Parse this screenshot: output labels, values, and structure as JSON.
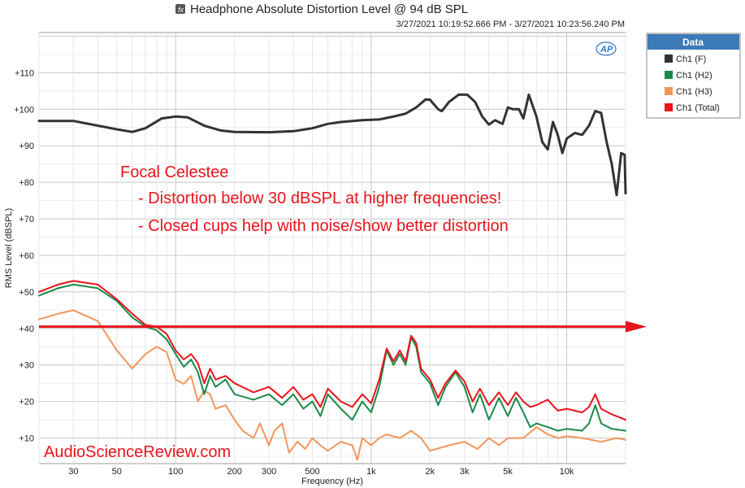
{
  "chart_data": {
    "type": "line",
    "title": "Headphone Absolute Distortion Level @ 94 dB SPL",
    "timestamp": "3/27/2021 10:19:52.666 PM - 3/27/2021 10:23:56.240 PM",
    "xlabel": "Frequency (Hz)",
    "ylabel": "RMS Level (dBSPL)",
    "x_scale": "log",
    "xlim": [
      20,
      20000
    ],
    "ylim": [
      3,
      121
    ],
    "x_ticks": [
      {
        "value": 30,
        "label": "30"
      },
      {
        "value": 50,
        "label": "50"
      },
      {
        "value": 100,
        "label": "100"
      },
      {
        "value": 200,
        "label": "200"
      },
      {
        "value": 300,
        "label": "300"
      },
      {
        "value": 500,
        "label": "500"
      },
      {
        "value": 1000,
        "label": "1k"
      },
      {
        "value": 2000,
        "label": "2k"
      },
      {
        "value": 3000,
        "label": "3k"
      },
      {
        "value": 5000,
        "label": "5k"
      },
      {
        "value": 10000,
        "label": "10k"
      }
    ],
    "y_ticks": [
      {
        "value": 10,
        "label": "+10"
      },
      {
        "value": 20,
        "label": "+20"
      },
      {
        "value": 30,
        "label": "+30"
      },
      {
        "value": 40,
        "label": "+40"
      },
      {
        "value": 50,
        "label": "+50"
      },
      {
        "value": 60,
        "label": "+60"
      },
      {
        "value": 70,
        "label": "+70"
      },
      {
        "value": 80,
        "label": "+80"
      },
      {
        "value": 90,
        "label": "+90"
      },
      {
        "value": 100,
        "label": "+100"
      },
      {
        "value": 110,
        "label": "+110"
      }
    ],
    "grid": true,
    "legend_position": "right",
    "legend_title": "Data",
    "series": [
      {
        "name": "Ch1 (F)",
        "color": "#333333",
        "points": [
          [
            20,
            96.8
          ],
          [
            30,
            96.8
          ],
          [
            40,
            95.5
          ],
          [
            50,
            94.5
          ],
          [
            60,
            93.8
          ],
          [
            70,
            94.8
          ],
          [
            85,
            97.5
          ],
          [
            100,
            98
          ],
          [
            115,
            97.8
          ],
          [
            140,
            95.5
          ],
          [
            170,
            94.2
          ],
          [
            200,
            93.8
          ],
          [
            300,
            93.7
          ],
          [
            400,
            94
          ],
          [
            500,
            94.8
          ],
          [
            600,
            96
          ],
          [
            700,
            96.5
          ],
          [
            900,
            97
          ],
          [
            1100,
            97.2
          ],
          [
            1300,
            98
          ],
          [
            1500,
            98.8
          ],
          [
            1700,
            100.5
          ],
          [
            1900,
            102.7
          ],
          [
            2000,
            102.6
          ],
          [
            2200,
            100
          ],
          [
            2300,
            99.5
          ],
          [
            2500,
            102
          ],
          [
            2800,
            104
          ],
          [
            3100,
            104
          ],
          [
            3400,
            102
          ],
          [
            3700,
            98
          ],
          [
            4000,
            95.8
          ],
          [
            4300,
            97
          ],
          [
            4700,
            96
          ],
          [
            5000,
            100.5
          ],
          [
            5300,
            100
          ],
          [
            5700,
            100
          ],
          [
            6000,
            97.5
          ],
          [
            6400,
            104
          ],
          [
            7000,
            98
          ],
          [
            7500,
            91
          ],
          [
            8000,
            89
          ],
          [
            8500,
            96.5
          ],
          [
            9000,
            93
          ],
          [
            9500,
            88
          ],
          [
            10000,
            92
          ],
          [
            11000,
            93.5
          ],
          [
            12000,
            93
          ],
          [
            13000,
            95.5
          ],
          [
            14000,
            99.5
          ],
          [
            15000,
            99
          ],
          [
            16000,
            91
          ],
          [
            17000,
            85
          ],
          [
            18000,
            76.5
          ],
          [
            19000,
            88
          ],
          [
            19800,
            87.5
          ],
          [
            20000,
            77
          ]
        ]
      },
      {
        "name": "Ch1 (H2)",
        "color": "#1b8a4a",
        "points": [
          [
            20,
            49
          ],
          [
            25,
            51
          ],
          [
            30,
            52
          ],
          [
            40,
            51
          ],
          [
            50,
            47.5
          ],
          [
            60,
            43
          ],
          [
            70,
            40.5
          ],
          [
            80,
            39.5
          ],
          [
            90,
            37
          ],
          [
            100,
            33
          ],
          [
            110,
            29.5
          ],
          [
            120,
            31.5
          ],
          [
            130,
            28
          ],
          [
            140,
            22
          ],
          [
            150,
            27
          ],
          [
            160,
            24
          ],
          [
            180,
            26
          ],
          [
            200,
            22
          ],
          [
            250,
            20.5
          ],
          [
            300,
            22
          ],
          [
            350,
            19
          ],
          [
            400,
            22
          ],
          [
            450,
            18
          ],
          [
            500,
            20
          ],
          [
            550,
            16
          ],
          [
            600,
            22
          ],
          [
            700,
            18
          ],
          [
            800,
            15
          ],
          [
            900,
            20
          ],
          [
            1000,
            17
          ],
          [
            1100,
            24
          ],
          [
            1200,
            34
          ],
          [
            1300,
            30
          ],
          [
            1400,
            33
          ],
          [
            1500,
            30
          ],
          [
            1600,
            37.5
          ],
          [
            1700,
            35
          ],
          [
            1800,
            28
          ],
          [
            2000,
            25
          ],
          [
            2200,
            19
          ],
          [
            2400,
            24
          ],
          [
            2700,
            28
          ],
          [
            3000,
            24
          ],
          [
            3300,
            17
          ],
          [
            3600,
            22
          ],
          [
            4000,
            15
          ],
          [
            4500,
            21
          ],
          [
            5000,
            16
          ],
          [
            5500,
            21
          ],
          [
            6000,
            17
          ],
          [
            6500,
            13
          ],
          [
            7000,
            14
          ],
          [
            8000,
            13
          ],
          [
            9000,
            12
          ],
          [
            10000,
            12.5
          ],
          [
            12000,
            12
          ],
          [
            13000,
            14
          ],
          [
            14000,
            19
          ],
          [
            15000,
            14
          ],
          [
            17000,
            12.5
          ],
          [
            20000,
            12
          ]
        ]
      },
      {
        "name": "Ch1 (H3)",
        "color": "#f2965c",
        "points": [
          [
            20,
            42.5
          ],
          [
            25,
            44
          ],
          [
            30,
            45
          ],
          [
            40,
            42
          ],
          [
            50,
            34
          ],
          [
            60,
            29
          ],
          [
            70,
            33
          ],
          [
            80,
            35
          ],
          [
            90,
            33.5
          ],
          [
            100,
            26
          ],
          [
            110,
            24.8
          ],
          [
            120,
            27
          ],
          [
            130,
            20
          ],
          [
            140,
            23
          ],
          [
            150,
            22
          ],
          [
            160,
            18
          ],
          [
            180,
            19
          ],
          [
            200,
            15
          ],
          [
            220,
            12
          ],
          [
            250,
            10
          ],
          [
            270,
            14
          ],
          [
            300,
            8
          ],
          [
            320,
            12
          ],
          [
            350,
            14
          ],
          [
            380,
            6
          ],
          [
            420,
            9
          ],
          [
            460,
            7
          ],
          [
            500,
            10
          ],
          [
            550,
            8
          ],
          [
            600,
            6.5
          ],
          [
            700,
            9
          ],
          [
            800,
            8
          ],
          [
            850,
            4
          ],
          [
            900,
            10
          ],
          [
            1000,
            8
          ],
          [
            1100,
            10
          ],
          [
            1200,
            11
          ],
          [
            1400,
            10
          ],
          [
            1600,
            12
          ],
          [
            1800,
            10
          ],
          [
            2000,
            6.5
          ],
          [
            2500,
            8
          ],
          [
            3000,
            9
          ],
          [
            3500,
            7
          ],
          [
            4000,
            10
          ],
          [
            4500,
            8
          ],
          [
            5000,
            10
          ],
          [
            6000,
            10
          ],
          [
            7000,
            13
          ],
          [
            8000,
            11
          ],
          [
            9000,
            10
          ],
          [
            10000,
            10.5
          ],
          [
            12000,
            10
          ],
          [
            15000,
            9
          ],
          [
            18000,
            10
          ],
          [
            20000,
            9.5
          ]
        ]
      },
      {
        "name": "Ch1 (Total)",
        "color": "#e8141b",
        "points": [
          [
            20,
            50
          ],
          [
            25,
            52
          ],
          [
            30,
            53
          ],
          [
            40,
            52
          ],
          [
            50,
            48
          ],
          [
            60,
            44
          ],
          [
            70,
            41
          ],
          [
            80,
            40.5
          ],
          [
            90,
            38.5
          ],
          [
            100,
            34
          ],
          [
            110,
            31.5
          ],
          [
            120,
            33
          ],
          [
            130,
            30.5
          ],
          [
            140,
            25
          ],
          [
            150,
            29
          ],
          [
            160,
            26
          ],
          [
            180,
            27
          ],
          [
            200,
            25
          ],
          [
            250,
            22.5
          ],
          [
            300,
            24
          ],
          [
            350,
            21
          ],
          [
            400,
            24
          ],
          [
            450,
            20.5
          ],
          [
            500,
            22
          ],
          [
            550,
            18.5
          ],
          [
            600,
            23.5
          ],
          [
            700,
            20
          ],
          [
            800,
            18.5
          ],
          [
            900,
            22
          ],
          [
            1000,
            19.5
          ],
          [
            1100,
            26
          ],
          [
            1200,
            34.5
          ],
          [
            1300,
            31
          ],
          [
            1400,
            34
          ],
          [
            1500,
            31
          ],
          [
            1600,
            38
          ],
          [
            1700,
            36
          ],
          [
            1800,
            29
          ],
          [
            2000,
            26
          ],
          [
            2200,
            21
          ],
          [
            2400,
            25
          ],
          [
            2700,
            28.5
          ],
          [
            3000,
            25.5
          ],
          [
            3300,
            20
          ],
          [
            3600,
            23.5
          ],
          [
            4000,
            19
          ],
          [
            4500,
            22.5
          ],
          [
            5000,
            19
          ],
          [
            5500,
            22.5
          ],
          [
            6000,
            20
          ],
          [
            6500,
            18.5
          ],
          [
            7000,
            19
          ],
          [
            8000,
            20.5
          ],
          [
            9000,
            17.5
          ],
          [
            10000,
            18
          ],
          [
            12000,
            17
          ],
          [
            13000,
            18.5
          ],
          [
            14000,
            22
          ],
          [
            15000,
            18
          ],
          [
            17000,
            16.5
          ],
          [
            20000,
            15
          ]
        ]
      }
    ],
    "annotations": [
      {
        "text": "Focal Celestee"
      },
      {
        "text": "- Distortion below 30 dBSPL at higher frequencies!"
      },
      {
        "text": "- Closed cups help with noise/show better distortion"
      }
    ],
    "reference_line": {
      "y": 40.5,
      "color": "#e8141b"
    },
    "watermark": "AudioScienceReview.com",
    "logo": "AP"
  }
}
